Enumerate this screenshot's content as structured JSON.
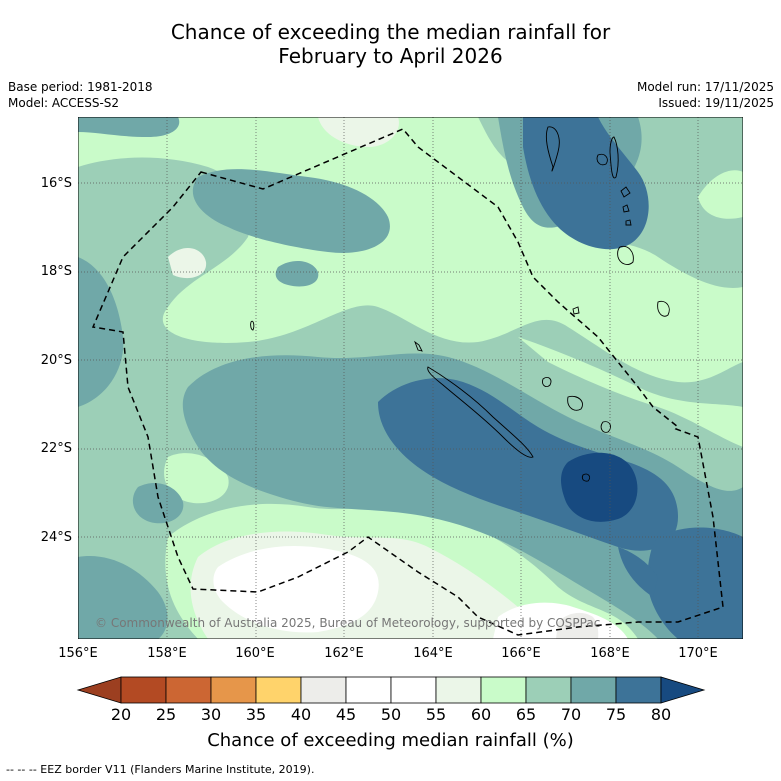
{
  "title": {
    "line1": "Chance of exceeding the median rainfall for",
    "line2": "February to April 2026"
  },
  "meta": {
    "base_period": "Base period: 1981-2018",
    "model": "Model: ACCESS-S2",
    "model_run": "Model run: 17/11/2025",
    "issued": "Issued: 19/11/2025"
  },
  "axes": {
    "lat_labels": [
      "16°S",
      "18°S",
      "20°S",
      "22°S",
      "24°S"
    ],
    "lon_labels": [
      "156°E",
      "158°E",
      "160°E",
      "162°E",
      "164°E",
      "166°E",
      "168°E",
      "170°E"
    ]
  },
  "map": {
    "copyright": "© Commonwealth of Australia 2025, Bureau of Meteorology, supported by COSPPac"
  },
  "colorbar": {
    "ticks": [
      "20",
      "25",
      "30",
      "35",
      "40",
      "45",
      "50",
      "55",
      "60",
      "65",
      "70",
      "75",
      "80"
    ],
    "colors": [
      "#b34a23",
      "#cc6633",
      "#e6964a",
      "#ffd36b",
      "#ededea",
      "#ffffff",
      "#ffffff",
      "#ebf6e8",
      "#c9fbc9",
      "#9ccfb7",
      "#70a8a8",
      "#3d7398"
    ],
    "under_color": "#9c3f20",
    "over_color": "#174a80",
    "label": "Chance of exceeding median rainfall (%)"
  },
  "footer": "--  --  -- EEZ border V11 (Flanders Marine Institute, 2019)."
}
